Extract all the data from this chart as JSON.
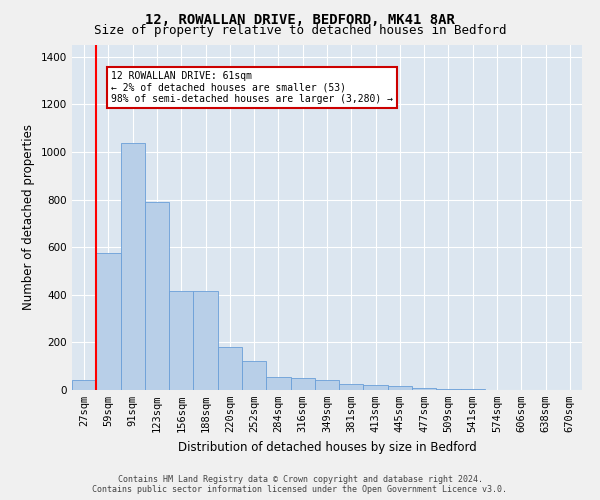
{
  "title_line1": "12, ROWALLAN DRIVE, BEDFORD, MK41 8AR",
  "title_line2": "Size of property relative to detached houses in Bedford",
  "xlabel": "Distribution of detached houses by size in Bedford",
  "ylabel": "Number of detached properties",
  "bar_color": "#b8cfe8",
  "bar_edge_color": "#6a9fd8",
  "background_color": "#dce6f0",
  "fig_background": "#f0f0f0",
  "categories": [
    "27sqm",
    "59sqm",
    "91sqm",
    "123sqm",
    "156sqm",
    "188sqm",
    "220sqm",
    "252sqm",
    "284sqm",
    "316sqm",
    "349sqm",
    "381sqm",
    "413sqm",
    "445sqm",
    "477sqm",
    "509sqm",
    "541sqm",
    "574sqm",
    "606sqm",
    "638sqm",
    "670sqm"
  ],
  "values": [
    40,
    575,
    1040,
    790,
    415,
    415,
    180,
    120,
    55,
    50,
    40,
    25,
    20,
    15,
    10,
    5,
    3,
    2,
    1,
    0,
    0
  ],
  "ylim": [
    0,
    1450
  ],
  "yticks": [
    0,
    200,
    400,
    600,
    800,
    1000,
    1200,
    1400
  ],
  "annotation_text": "12 ROWALLAN DRIVE: 61sqm\n← 2% of detached houses are smaller (53)\n98% of semi-detached houses are larger (3,280) →",
  "annotation_box_color": "#ffffff",
  "annotation_box_edge": "#cc0000",
  "footer_line1": "Contains HM Land Registry data © Crown copyright and database right 2024.",
  "footer_line2": "Contains public sector information licensed under the Open Government Licence v3.0.",
  "grid_color": "#ffffff",
  "title_fontsize": 10,
  "subtitle_fontsize": 9,
  "tick_fontsize": 7.5,
  "label_fontsize": 8.5,
  "footer_fontsize": 6
}
